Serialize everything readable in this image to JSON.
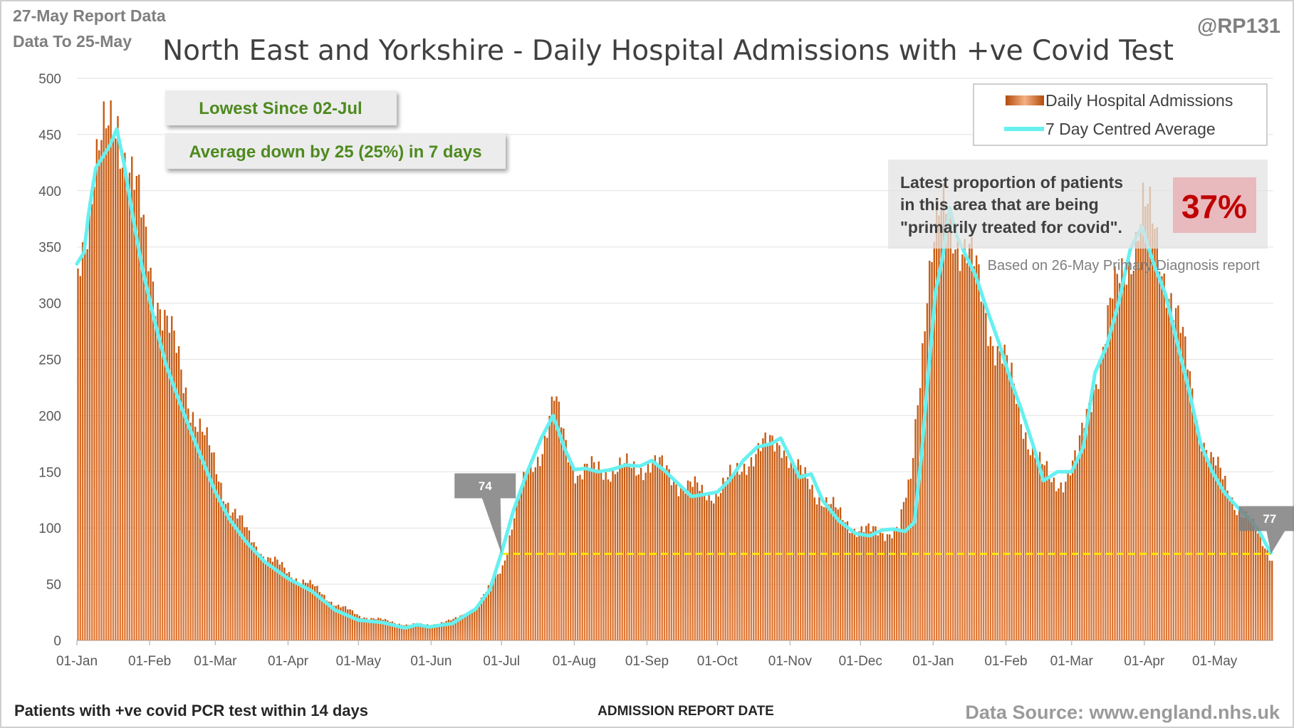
{
  "header": {
    "report_date": "27-May Report Data",
    "data_to": "Data To 25-May",
    "handle": "@RP131"
  },
  "chart_data": {
    "type": "bar",
    "title": "North East and Yorkshire - Daily Hospital Admissions with +ve Covid Test",
    "xlabel": "ADMISSION REPORT DATE",
    "ylabel": "",
    "ylim": [
      0,
      500
    ],
    "yticks": [
      "0",
      "50",
      "100",
      "150",
      "200",
      "250",
      "300",
      "350",
      "400",
      "450",
      "500"
    ],
    "xtick_labels": [
      "01-Jan",
      "01-Feb",
      "01-Mar",
      "01-Apr",
      "01-May",
      "01-Jun",
      "01-Jul",
      "01-Aug",
      "01-Sep",
      "01-Oct",
      "01-Nov",
      "01-Dec",
      "01-Jan",
      "01-Feb",
      "01-Mar",
      "01-Apr",
      "01-May"
    ],
    "xtick_day_index": [
      0,
      31,
      59,
      90,
      120,
      151,
      181,
      212,
      243,
      273,
      304,
      334,
      365,
      396,
      424,
      455,
      485
    ],
    "total_days": 510,
    "grid": true,
    "legend_placement": "top-right",
    "colors": {
      "bars": "#c55a11",
      "bars_light": "#f4b183",
      "average": "#66f0f0",
      "reference": "#ffe600",
      "pct_box": "#e8b4b8",
      "green_text": "#4e8a1f"
    },
    "series": [
      {
        "name": "Daily Hospital Admissions",
        "type": "bar",
        "anchors": [
          [
            0,
            330
          ],
          [
            3,
            370
          ],
          [
            7,
            420
          ],
          [
            12,
            440
          ],
          [
            17,
            470
          ],
          [
            20,
            440
          ],
          [
            24,
            400
          ],
          [
            28,
            360
          ],
          [
            33,
            320
          ],
          [
            38,
            280
          ],
          [
            45,
            230
          ],
          [
            52,
            190
          ],
          [
            59,
            150
          ],
          [
            65,
            120
          ],
          [
            72,
            95
          ],
          [
            80,
            75
          ],
          [
            90,
            60
          ],
          [
            100,
            48
          ],
          [
            110,
            32
          ],
          [
            120,
            22
          ],
          [
            130,
            18
          ],
          [
            140,
            14
          ],
          [
            150,
            14
          ],
          [
            160,
            18
          ],
          [
            170,
            30
          ],
          [
            175,
            45
          ],
          [
            181,
            68
          ],
          [
            186,
            110
          ],
          [
            192,
            150
          ],
          [
            198,
            175
          ],
          [
            203,
            210
          ],
          [
            208,
            175
          ],
          [
            213,
            150
          ],
          [
            220,
            150
          ],
          [
            228,
            155
          ],
          [
            236,
            150
          ],
          [
            243,
            160
          ],
          [
            250,
            150
          ],
          [
            258,
            140
          ],
          [
            266,
            130
          ],
          [
            273,
            135
          ],
          [
            280,
            145
          ],
          [
            286,
            165
          ],
          [
            293,
            170
          ],
          [
            300,
            180
          ],
          [
            306,
            150
          ],
          [
            312,
            140
          ],
          [
            318,
            125
          ],
          [
            325,
            110
          ],
          [
            332,
            100
          ],
          [
            338,
            95
          ],
          [
            345,
            98
          ],
          [
            350,
            100
          ],
          [
            355,
            140
          ],
          [
            358,
            220
          ],
          [
            362,
            320
          ],
          [
            366,
            360
          ],
          [
            370,
            380
          ],
          [
            374,
            370
          ],
          [
            378,
            350
          ],
          [
            383,
            320
          ],
          [
            389,
            280
          ],
          [
            396,
            240
          ],
          [
            402,
            200
          ],
          [
            410,
            155
          ],
          [
            415,
            140
          ],
          [
            420,
            145
          ],
          [
            426,
            160
          ],
          [
            433,
            230
          ],
          [
            440,
            290
          ],
          [
            447,
            340
          ],
          [
            454,
            380
          ],
          [
            459,
            360
          ],
          [
            465,
            320
          ],
          [
            471,
            260
          ],
          [
            477,
            200
          ],
          [
            483,
            160
          ],
          [
            490,
            135
          ],
          [
            496,
            115
          ],
          [
            502,
            95
          ],
          [
            506,
            85
          ],
          [
            509,
            75
          ]
        ],
        "amplitude": 0.1
      },
      {
        "name": "7 Day Centred Average",
        "type": "line",
        "anchors": [
          [
            0,
            335
          ],
          [
            3,
            345
          ],
          [
            5,
            380
          ],
          [
            8,
            420
          ],
          [
            11,
            430
          ],
          [
            14,
            440
          ],
          [
            17,
            455
          ],
          [
            20,
            425
          ],
          [
            24,
            375
          ],
          [
            28,
            330
          ],
          [
            33,
            285
          ],
          [
            38,
            245
          ],
          [
            45,
            205
          ],
          [
            52,
            168
          ],
          [
            59,
            132
          ],
          [
            65,
            108
          ],
          [
            72,
            88
          ],
          [
            80,
            70
          ],
          [
            90,
            55
          ],
          [
            100,
            44
          ],
          [
            110,
            27
          ],
          [
            120,
            18
          ],
          [
            130,
            16
          ],
          [
            140,
            11
          ],
          [
            145,
            14
          ],
          [
            150,
            12
          ],
          [
            160,
            15
          ],
          [
            170,
            28
          ],
          [
            176,
            45
          ],
          [
            181,
            78
          ],
          [
            186,
            115
          ],
          [
            192,
            150
          ],
          [
            198,
            180
          ],
          [
            203,
            200
          ],
          [
            208,
            170
          ],
          [
            212,
            152
          ],
          [
            217,
            153
          ],
          [
            222,
            150
          ],
          [
            228,
            152
          ],
          [
            234,
            156
          ],
          [
            240,
            155
          ],
          [
            245,
            160
          ],
          [
            250,
            152
          ],
          [
            256,
            140
          ],
          [
            262,
            128
          ],
          [
            268,
            130
          ],
          [
            273,
            132
          ],
          [
            278,
            142
          ],
          [
            284,
            160
          ],
          [
            290,
            172
          ],
          [
            296,
            175
          ],
          [
            300,
            180
          ],
          [
            304,
            163
          ],
          [
            308,
            145
          ],
          [
            313,
            148
          ],
          [
            318,
            124
          ],
          [
            325,
            106
          ],
          [
            332,
            95
          ],
          [
            338,
            93
          ],
          [
            343,
            98
          ],
          [
            348,
            99
          ],
          [
            353,
            97
          ],
          [
            357,
            105
          ],
          [
            360,
            165
          ],
          [
            363,
            240
          ],
          [
            366,
            310
          ],
          [
            369,
            340
          ],
          [
            372,
            385
          ],
          [
            375,
            360
          ],
          [
            379,
            342
          ],
          [
            383,
            325
          ],
          [
            388,
            294
          ],
          [
            393,
            265
          ],
          [
            398,
            232
          ],
          [
            403,
            203
          ],
          [
            408,
            171
          ],
          [
            412,
            142
          ],
          [
            418,
            150
          ],
          [
            424,
            150
          ],
          [
            429,
            172
          ],
          [
            434,
            238
          ],
          [
            439,
            262
          ],
          [
            444,
            300
          ],
          [
            449,
            348
          ],
          [
            454,
            368
          ],
          [
            459,
            335
          ],
          [
            464,
            308
          ],
          [
            469,
            265
          ],
          [
            474,
            223
          ],
          [
            479,
            175
          ],
          [
            484,
            150
          ],
          [
            489,
            132
          ],
          [
            494,
            120
          ],
          [
            499,
            110
          ],
          [
            504,
            97
          ],
          [
            507,
            85
          ],
          [
            509,
            78
          ]
        ]
      },
      {
        "name": "reference_level",
        "type": "dashed-line",
        "value": 77,
        "start_day": 181,
        "end_day": 509
      }
    ],
    "callouts": [
      {
        "label": "74",
        "day": 181,
        "value": 77
      },
      {
        "label": "77",
        "day": 509,
        "value": 77
      }
    ]
  },
  "annotations": {
    "lowest_since": "Lowest Since 02-Jul",
    "average_down": "Average down by 25 (25%) in 7 days",
    "proportion_lines": [
      "Latest proportion of patients",
      "in this area that are being",
      "\"primarily treated for covid\"."
    ],
    "proportion_value": "37%",
    "based_on": "Based on 26-May Primary Diagnosis report"
  },
  "footer": {
    "left": "Patients with +ve covid PCR test within 14 days",
    "middle": "ADMISSION REPORT DATE",
    "right": "Data Source: www.england.nhs.uk"
  }
}
